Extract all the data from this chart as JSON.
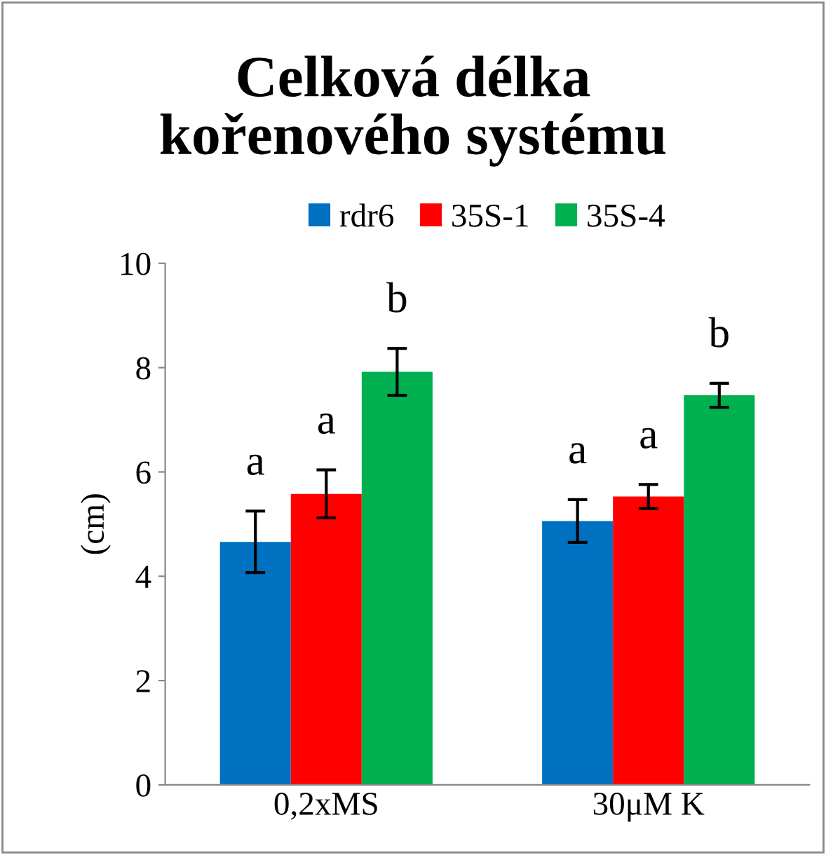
{
  "chart_data": {
    "type": "bar",
    "title": "Celková délka\nkořenového systému",
    "ylabel": "(cm)",
    "categories": [
      "0,2xMS",
      "30μM K"
    ],
    "series": [
      {
        "name": "rdr6",
        "color": "#0070c0",
        "values": [
          4.66,
          5.06
        ],
        "errors": [
          0.59,
          0.41
        ]
      },
      {
        "name": "35S-1",
        "color": "#ff0000",
        "values": [
          5.58,
          5.53
        ],
        "errors": [
          0.46,
          0.23
        ]
      },
      {
        "name": "35S-4",
        "color": "#00b050",
        "values": [
          7.92,
          7.47
        ],
        "errors": [
          0.45,
          0.23
        ]
      }
    ],
    "ylim": [
      0,
      10
    ],
    "yticks": [
      0,
      2,
      4,
      6,
      8,
      10
    ],
    "grid": false,
    "legend": "top",
    "annotations": [
      "a",
      "a",
      "b",
      "a",
      "a",
      "b"
    ]
  }
}
